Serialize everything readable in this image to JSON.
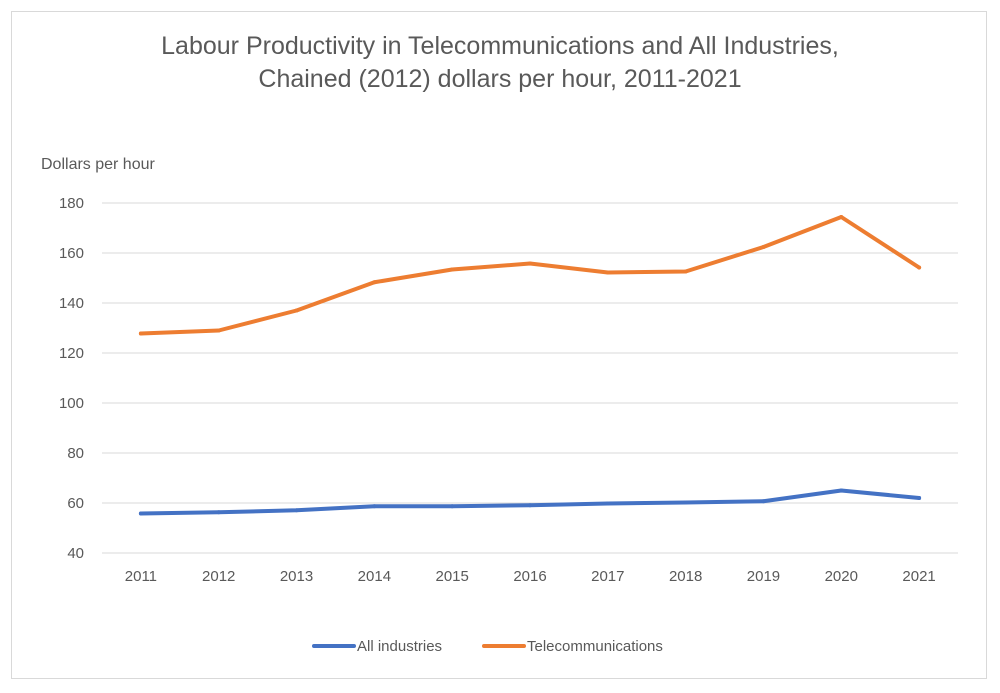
{
  "chart_data": {
    "type": "line",
    "title": "Labour Productivity in Telecommunications and All Industries,",
    "subtitle": "Chained (2012) dollars per hour, 2011-2021",
    "ylabel": "Dollars per hour",
    "xlabel": "",
    "ylim": [
      40,
      180
    ],
    "yticks": [
      40,
      60,
      80,
      100,
      120,
      140,
      160,
      180
    ],
    "categories": [
      "2011",
      "2012",
      "2013",
      "2014",
      "2015",
      "2016",
      "2017",
      "2018",
      "2019",
      "2020",
      "2021"
    ],
    "grid": true,
    "legend_position": "bottom",
    "series": [
      {
        "name": "All industries",
        "color": "#4472c4",
        "values": [
          55.8,
          56.3,
          57.1,
          58.7,
          58.7,
          59.1,
          59.8,
          60.2,
          60.7,
          65.0,
          62.0
        ]
      },
      {
        "name": "Telecommunications",
        "color": "#ed7d31",
        "values": [
          127.8,
          129.0,
          137.0,
          148.3,
          153.4,
          155.8,
          152.2,
          152.6,
          162.4,
          174.4,
          154.2
        ]
      }
    ]
  }
}
